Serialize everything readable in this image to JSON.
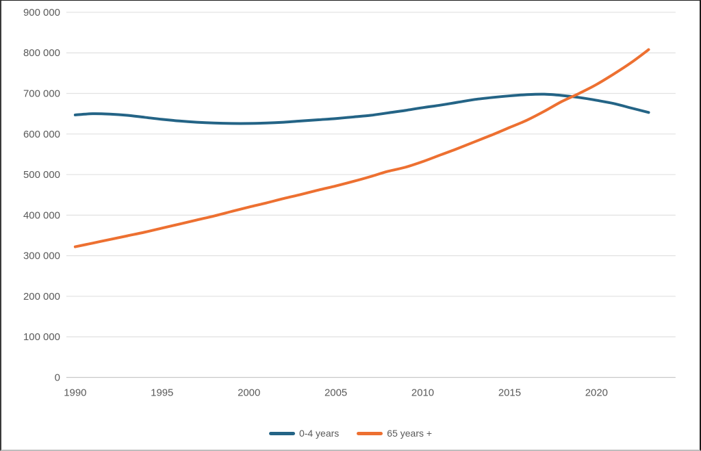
{
  "chart_data": {
    "type": "line",
    "title": "",
    "x": [
      1990,
      1991,
      1992,
      1993,
      1994,
      1995,
      1996,
      1997,
      1998,
      1999,
      2000,
      2001,
      2002,
      2003,
      2004,
      2005,
      2006,
      2007,
      2008,
      2009,
      2010,
      2011,
      2012,
      2013,
      2014,
      2015,
      2016,
      2017,
      2018,
      2019,
      2020,
      2021,
      2022,
      2023
    ],
    "series": [
      {
        "name": "0-4 years",
        "color": "#246486",
        "values": [
          647000,
          650000,
          649000,
          646000,
          641000,
          636000,
          632000,
          629000,
          627000,
          626000,
          626000,
          627000,
          629000,
          632000,
          635000,
          638000,
          642000,
          646000,
          652000,
          658000,
          665000,
          671000,
          678000,
          685000,
          690000,
          694000,
          697000,
          698000,
          695000,
          690000,
          683000,
          675000,
          664000,
          653000
        ]
      },
      {
        "name": "65 years +",
        "color": "#ED7031",
        "values": [
          322000,
          331000,
          340000,
          349000,
          358000,
          368000,
          378000,
          388000,
          398000,
          409000,
          420000,
          430000,
          441000,
          451000,
          462000,
          472000,
          483000,
          495000,
          508000,
          518000,
          532000,
          548000,
          564000,
          581000,
          598000,
          616000,
          634000,
          656000,
          680000,
          700000,
          722000,
          748000,
          776000,
          808000
        ]
      }
    ],
    "ylim": [
      0,
      900000
    ],
    "ytick_interval": 100000,
    "ytick_labels": [
      "0",
      "100 000",
      "200 000",
      "300 000",
      "400 000",
      "500 000",
      "600 000",
      "700 000",
      "800 000",
      "900 000"
    ],
    "xticks": [
      1990,
      1995,
      2000,
      2005,
      2010,
      2015,
      2020
    ],
    "xtick_labels": [
      "1990",
      "1995",
      "2000",
      "2005",
      "2010",
      "2015",
      "2020"
    ],
    "grid": "horizontal",
    "legend_position": "bottom-center",
    "colors": {
      "gridline": "#E1E1E1",
      "zero_line": "#C8C8C8",
      "tick_label": "#595959"
    }
  }
}
